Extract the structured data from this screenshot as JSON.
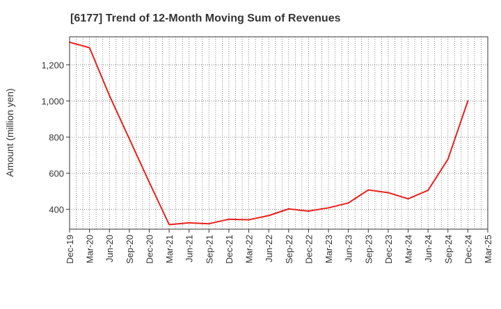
{
  "chart_data": {
    "type": "line",
    "title": "[6177]  Trend of 12-Month Moving Sum of Revenues",
    "xlabel": "",
    "ylabel": "Amount (million yen)",
    "x_tick_labels": [
      "Dec-19",
      "Mar-20",
      "Jun-20",
      "Sep-20",
      "Dec-20",
      "Mar-21",
      "Jun-21",
      "Sep-21",
      "Dec-21",
      "Mar-22",
      "Jun-22",
      "Sep-22",
      "Dec-22",
      "Mar-23",
      "Jun-23",
      "Sep-23",
      "Dec-23",
      "Mar-24",
      "Jun-24",
      "Sep-24",
      "Dec-24",
      "Mar-25"
    ],
    "y_ticks": [
      400,
      600,
      800,
      1000,
      1200
    ],
    "y_tick_labels": [
      "400",
      "600",
      "800",
      "1,000",
      "1,200"
    ],
    "ylim": [
      290,
      1355
    ],
    "grid": true,
    "colors": {
      "line": "#e8201c",
      "grid": "#666666",
      "axis": "#333333"
    },
    "series": [
      {
        "name": "",
        "x": [
          "Dec-19",
          "Mar-20",
          "Jun-20",
          "Sep-20",
          "Dec-20",
          "Mar-21",
          "Jun-21",
          "Sep-21",
          "Dec-21",
          "Mar-22",
          "Jun-22",
          "Sep-22",
          "Dec-22",
          "Mar-23",
          "Jun-23",
          "Sep-23",
          "Dec-23",
          "Mar-24",
          "Jun-24",
          "Sep-24",
          "Dec-24"
        ],
        "values": [
          1325,
          1295,
          1030,
          790,
          550,
          315,
          325,
          320,
          345,
          342,
          365,
          402,
          390,
          408,
          435,
          507,
          492,
          458,
          505,
          677,
          1000
        ]
      }
    ]
  }
}
